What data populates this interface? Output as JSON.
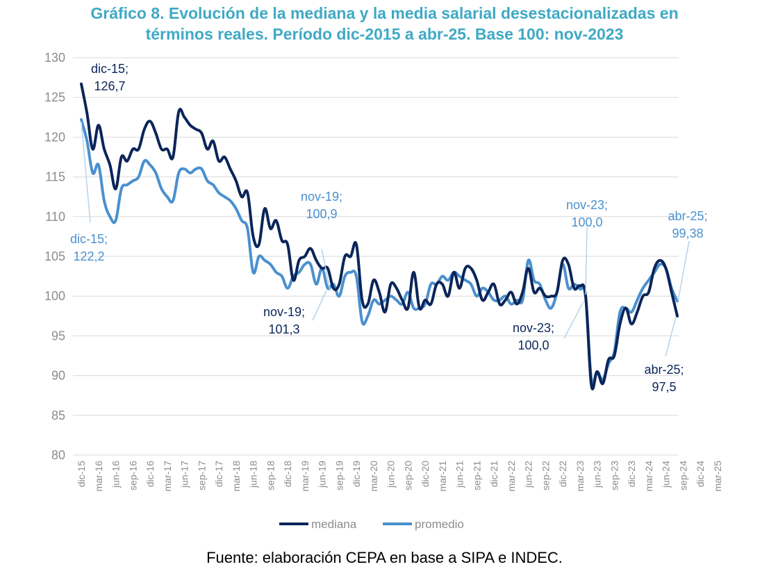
{
  "title_line1": "Gráfico 8. Evolución de la mediana y la media salarial desestacionalizadas en",
  "title_line2": "términos reales. Período dic-2015 a abr-25. Base 100: nov-2023",
  "source": "Fuente: elaboración CEPA en base a SIPA e INDEC.",
  "colors": {
    "mediana": "#0B2559",
    "promedio": "#4A90CE",
    "title": "#3FA9C5",
    "axis": "#8c8c8c",
    "grid": "#d9d9d9"
  },
  "chart_data": {
    "type": "line",
    "ylim": [
      80,
      130
    ],
    "yticks": [
      80,
      85,
      90,
      95,
      100,
      105,
      110,
      115,
      120,
      125,
      130
    ],
    "xtick_labels": [
      "dic-15",
      "mar-16",
      "jun-16",
      "sep-16",
      "dic-16",
      "mar-17",
      "jun-17",
      "sep-17",
      "dic-17",
      "mar-18",
      "jun-18",
      "sep-18",
      "dic-18",
      "mar-19",
      "jun-19",
      "sep-19",
      "dic-19",
      "mar-20",
      "jun-20",
      "sep-20",
      "dic-20",
      "mar-21",
      "jun-21",
      "sep-21",
      "dic-21",
      "mar-22",
      "jun-22",
      "sep-22",
      "dic-22",
      "mar-23",
      "jun-23",
      "sep-23",
      "dic-23",
      "mar-24",
      "jun-24",
      "sep-24",
      "dic-24",
      "mar-25"
    ],
    "grid": "horizontal",
    "legend_position": "bottom",
    "series": [
      {
        "name": "mediana",
        "values": [
          126.7,
          123.0,
          118.5,
          121.5,
          118.5,
          116.5,
          113.5,
          117.5,
          117.0,
          118.5,
          118.5,
          121.0,
          122.0,
          120.5,
          118.5,
          118.5,
          117.5,
          123.2,
          122.5,
          121.5,
          121.0,
          120.5,
          118.5,
          119.5,
          117.0,
          117.5,
          116.0,
          114.5,
          112.5,
          113.0,
          107.5,
          106.5,
          111.0,
          108.5,
          109.5,
          107.0,
          106.5,
          102.0,
          104.5,
          105.0,
          106.0,
          104.5,
          103.5,
          103.5,
          101.0,
          101.5,
          105.0,
          105.0,
          106.5,
          99.5,
          99.0,
          102.0,
          100.5,
          98.0,
          101.5,
          101.0,
          99.5,
          98.5,
          103.0,
          98.5,
          99.5,
          99.0,
          101.5,
          101.5,
          100.0,
          103.0,
          101.0,
          103.5,
          103.5,
          102.0,
          99.5,
          100.5,
          101.5,
          99.0,
          99.5,
          100.5,
          99.0,
          100.5,
          103.5,
          100.5,
          101.0,
          100.0,
          100.0,
          100.5,
          104.5,
          104.0,
          101.0,
          101.3,
          100.0,
          88.8,
          90.5,
          89.0,
          92.0,
          92.5,
          96.5,
          98.5,
          96.5,
          98.0,
          100.0,
          100.5,
          103.5,
          104.5,
          103.5,
          100.5,
          97.5
        ]
      },
      {
        "name": "promedio",
        "values": [
          122.2,
          119.5,
          115.5,
          116.5,
          112.0,
          110.0,
          109.5,
          113.5,
          114.0,
          114.5,
          115.0,
          117.0,
          116.5,
          115.5,
          113.5,
          112.5,
          112.0,
          115.5,
          116.0,
          115.5,
          116.0,
          116.0,
          114.5,
          114.0,
          113.0,
          112.5,
          112.0,
          111.0,
          109.5,
          108.5,
          103.0,
          105.0,
          104.5,
          104.0,
          103.0,
          102.5,
          101.0,
          102.5,
          103.0,
          104.0,
          104.0,
          101.5,
          103.5,
          101.0,
          101.5,
          100.0,
          102.5,
          103.0,
          102.5,
          96.8,
          97.5,
          99.5,
          99.0,
          99.5,
          100.0,
          99.5,
          99.0,
          100.5,
          98.5,
          98.5,
          99.0,
          101.5,
          101.5,
          102.5,
          102.0,
          103.0,
          102.5,
          102.0,
          101.5,
          100.0,
          101.0,
          100.5,
          99.5,
          99.5,
          100.0,
          99.0,
          99.5,
          99.5,
          104.5,
          102.0,
          101.5,
          99.5,
          98.5,
          100.5,
          104.0,
          101.0,
          101.5,
          100.9,
          100.0,
          89.5,
          90.5,
          89.5,
          91.5,
          93.0,
          98.0,
          98.5,
          98.0,
          99.5,
          101.0,
          102.0,
          103.0,
          104.0,
          103.5,
          101.0,
          99.38
        ]
      }
    ],
    "annotations": [
      {
        "label": "dic-15;",
        "value": "126,7",
        "series": "mediana"
      },
      {
        "label": "dic-15;",
        "value": "122,2",
        "series": "promedio"
      },
      {
        "label": "nov-19;",
        "value": "100,9",
        "series": "promedio"
      },
      {
        "label": "nov-19;",
        "value": "101,3",
        "series": "mediana"
      },
      {
        "label": "nov-23;",
        "value": "100,0",
        "series": "promedio"
      },
      {
        "label": "nov-23;",
        "value": "100,0",
        "series": "mediana"
      },
      {
        "label": "abr-25;",
        "value": "99,38",
        "series": "promedio"
      },
      {
        "label": "abr-25;",
        "value": "97,5",
        "series": "mediana"
      }
    ]
  }
}
